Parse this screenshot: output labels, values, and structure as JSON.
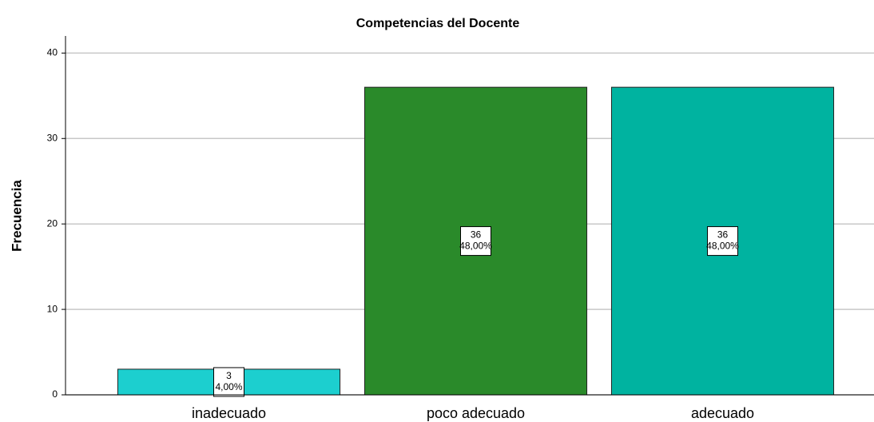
{
  "chart_data": {
    "type": "bar",
    "title": "Competencias del Docente",
    "y_label": "Frecuencia",
    "categories": [
      "inadecuado",
      "poco adecuado",
      "adecuado"
    ],
    "values": [
      3,
      36,
      36
    ],
    "percent_labels": [
      "4,00%",
      "48,00%",
      "48,00%"
    ],
    "colors": [
      "#1ccfcf",
      "#2a8a2a",
      "#00b3a0"
    ],
    "ylim": [
      0,
      42
    ],
    "yticks": [
      0,
      10,
      20,
      30,
      40
    ],
    "grid": true
  }
}
